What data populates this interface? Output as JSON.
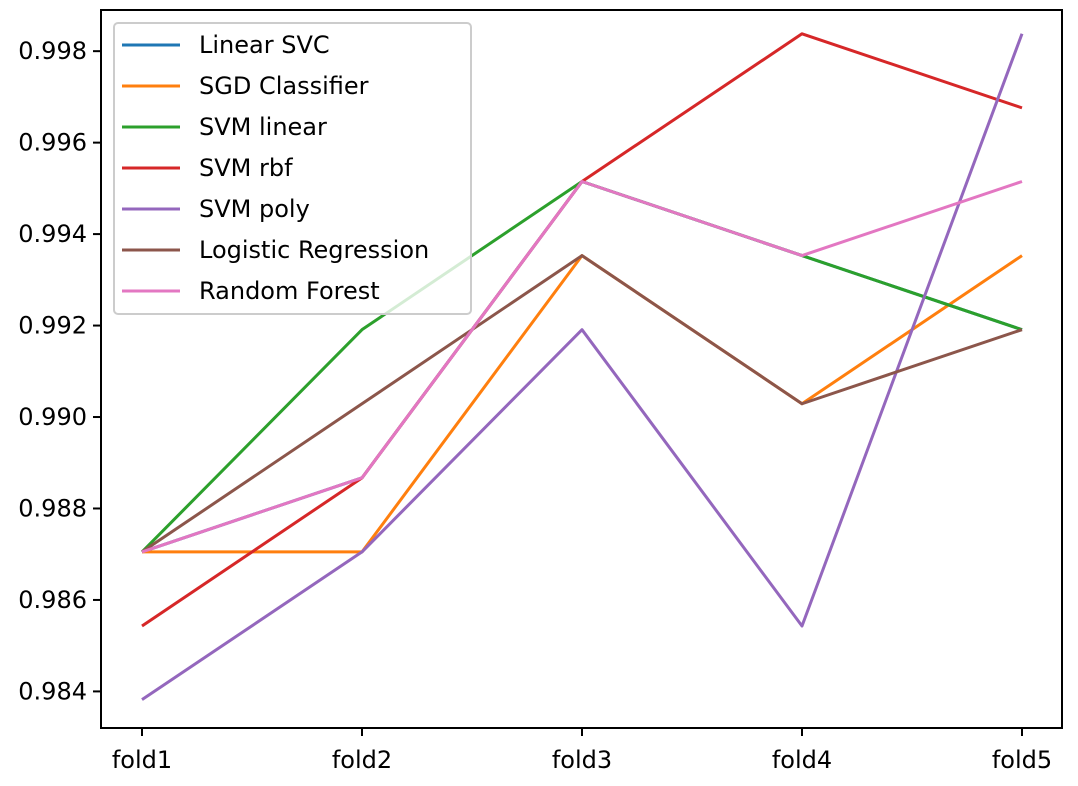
{
  "chart_data": {
    "type": "line",
    "title": "",
    "xlabel": "",
    "ylabel": "",
    "categories": [
      "fold1",
      "fold2",
      "fold3",
      "fold4",
      "fold5"
    ],
    "ylim": [
      0.9832,
      0.9989
    ],
    "yticks": [
      0.984,
      0.986,
      0.988,
      0.99,
      0.992,
      0.994,
      0.996,
      0.998
    ],
    "ytick_labels": [
      "0.984",
      "0.986",
      "0.988",
      "0.990",
      "0.992",
      "0.994",
      "0.996",
      "0.998"
    ],
    "grid": false,
    "legend_position": "upper-left",
    "series": [
      {
        "name": "Linear SVC",
        "color": "#1f77b4",
        "values": [
          0.98705,
          0.98867,
          0.99515,
          0.99353,
          0.99191
        ]
      },
      {
        "name": "SGD Classifier",
        "color": "#ff7f0e",
        "values": [
          0.98705,
          0.98705,
          0.99353,
          0.99029,
          0.99353
        ]
      },
      {
        "name": "SVM linear",
        "color": "#2ca02c",
        "values": [
          0.98705,
          0.99191,
          0.99515,
          0.99353,
          0.99191
        ]
      },
      {
        "name": "SVM rbf",
        "color": "#d62728",
        "values": [
          0.98543,
          0.98867,
          0.99515,
          0.99838,
          0.99676
        ]
      },
      {
        "name": "SVM poly",
        "color": "#9467bd",
        "values": [
          0.98382,
          0.98705,
          0.99191,
          0.98543,
          0.99838
        ]
      },
      {
        "name": "Logistic Regression",
        "color": "#8c564b",
        "values": [
          0.98705,
          0.99029,
          0.99353,
          0.99029,
          0.99191
        ]
      },
      {
        "name": "Random Forest",
        "color": "#e377c2",
        "values": [
          0.98705,
          0.98867,
          0.99515,
          0.99353,
          0.99515
        ]
      }
    ]
  }
}
